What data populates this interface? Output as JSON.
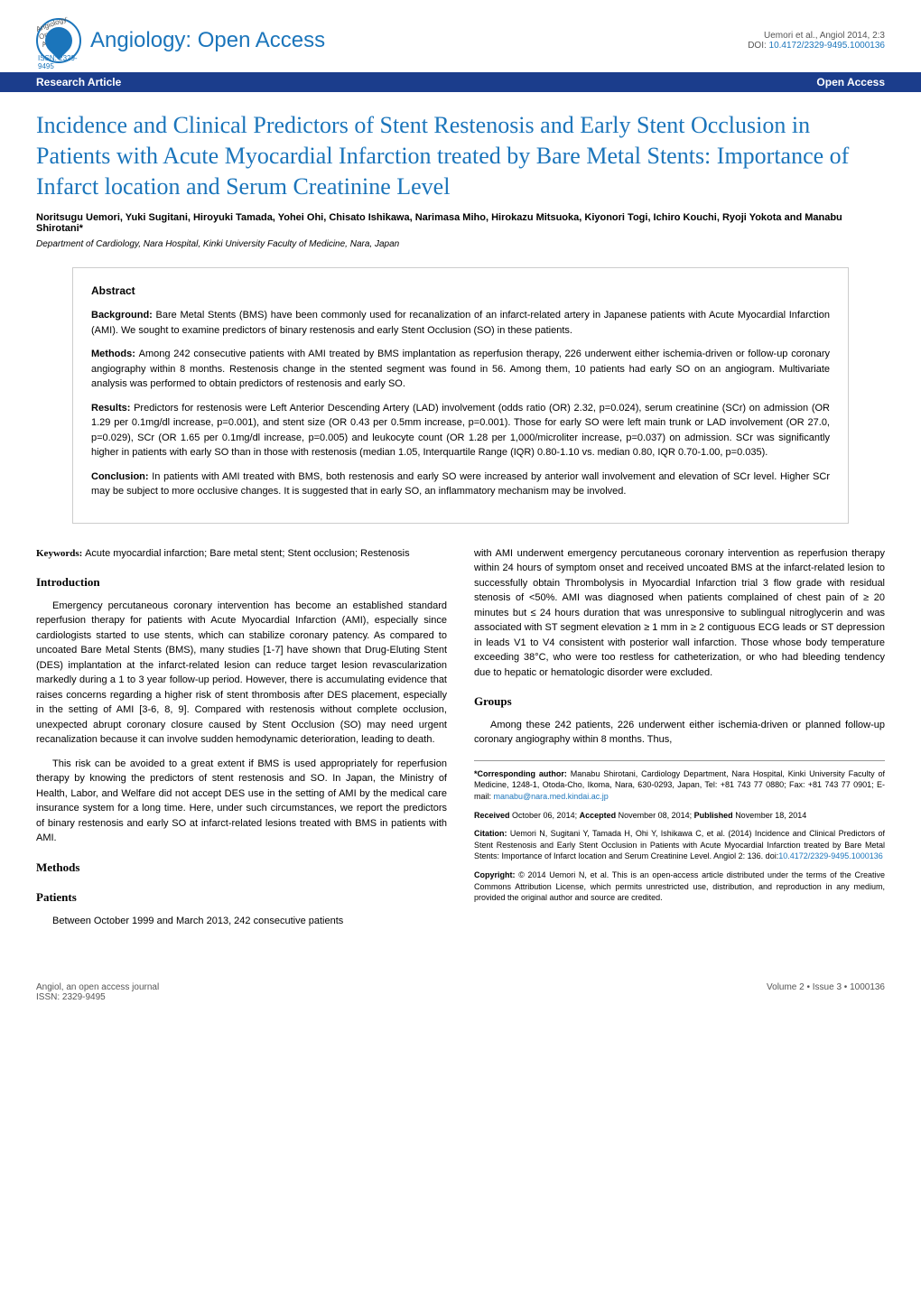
{
  "header": {
    "logo_top_text": "Angiology: Open Access",
    "issn": "ISSN: 2329-9495",
    "journal_title": "Angiology: Open Access",
    "citation": "Uemori et al., Angiol 2014, 2:3",
    "doi_label": "DOI: ",
    "doi": "10.4172/2329-9495.1000136"
  },
  "type_bar": {
    "left": "Research Article",
    "right": "Open Access"
  },
  "article": {
    "title": "Incidence and Clinical Predictors of Stent Restenosis and Early Stent Occlusion in Patients with Acute Myocardial Infarction treated by Bare Metal Stents: Importance of Infarct location and Serum Creatinine Level",
    "authors": "Noritsugu Uemori, Yuki Sugitani, Hiroyuki Tamada, Yohei Ohi, Chisato Ishikawa, Narimasa Miho, Hirokazu Mitsuoka, Kiyonori Togi, Ichiro Kouchi, Ryoji Yokota and Manabu Shirotani*",
    "affiliation": "Department of Cardiology, Nara Hospital, Kinki University Faculty of Medicine, Nara, Japan"
  },
  "abstract": {
    "heading": "Abstract",
    "background_label": "Background: ",
    "background": "Bare Metal Stents (BMS) have been commonly used for recanalization of an infarct-related artery in Japanese patients with Acute Myocardial Infarction (AMI). We sought to examine predictors of binary restenosis and early Stent Occlusion (SO) in these patients.",
    "methods_label": "Methods: ",
    "methods": "Among 242 consecutive patients with AMI treated by BMS implantation as reperfusion therapy, 226 underwent either ischemia-driven or follow-up coronary angiography within 8 months. Restenosis change in the stented segment was found in 56. Among them, 10 patients had early SO on an angiogram. Multivariate analysis was performed to obtain predictors of restenosis and early SO.",
    "results_label": "Results: ",
    "results": "Predictors for restenosis were Left Anterior Descending Artery (LAD) involvement (odds ratio (OR) 2.32, p=0.024), serum creatinine (SCr) on admission (OR 1.29 per 0.1mg/dl increase, p=0.001), and stent size (OR 0.43 per 0.5mm increase, p=0.001). Those for early SO were left main trunk or LAD involvement (OR 27.0, p=0.029), SCr (OR 1.65 per 0.1mg/dl increase, p=0.005) and leukocyte count (OR 1.28 per 1,000/microliter increase, p=0.037) on admission. SCr was significantly higher in patients with early SO than in those with restenosis (median 1.05, Interquartile Range (IQR) 0.80-1.10 vs. median 0.80, IQR 0.70-1.00, p=0.035).",
    "conclusion_label": "Conclusion: ",
    "conclusion": "In patients with AMI treated with BMS, both restenosis and early SO were increased by anterior wall involvement and elevation of SCr level. Higher SCr may be subject to more occlusive changes. It is suggested that in early SO, an inflammatory mechanism may be involved."
  },
  "body": {
    "keywords_label": "Keywords: ",
    "keywords": "Acute myocardial infarction; Bare metal stent; Stent occlusion; Restenosis",
    "intro_heading": "Introduction",
    "intro_p1": "Emergency percutaneous coronary intervention has become an established standard reperfusion therapy for patients with Acute Myocardial Infarction (AMI), especially since cardiologists started to use stents, which can stabilize coronary patency. As compared to uncoated Bare Metal Stents (BMS), many studies [1-7] have shown that Drug-Eluting Stent (DES) implantation at the infarct-related lesion can reduce target lesion revascularization markedly during a 1 to 3 year follow-up period. However, there is accumulating evidence that raises concerns regarding a higher risk of stent thrombosis after DES placement, especially in the setting of AMI [3-6, 8, 9]. Compared with restenosis without complete occlusion, unexpected abrupt coronary closure caused by Stent Occlusion (SO) may need urgent recanalization because it can involve sudden hemodynamic deterioration, leading to death.",
    "intro_p2": "This risk can be avoided to a great extent if BMS is used appropriately for reperfusion therapy by knowing the predictors of stent restenosis and SO. In Japan, the Ministry of Health, Labor, and Welfare did not accept DES use in the setting of AMI by the medical care insurance system for a long time. Here, under such circumstances, we report the predictors of binary restenosis and early SO at infarct-related lesions treated with BMS in patients with AMI.",
    "methods_heading": "Methods",
    "patients_heading": "Patients",
    "patients_p1": "Between October 1999 and March 2013, 242 consecutive patients",
    "col2_p1": "with AMI underwent emergency percutaneous coronary intervention as reperfusion therapy within 24 hours of symptom onset and received uncoated BMS at the infarct-related lesion to successfully obtain Thrombolysis in Myocardial Infarction trial 3 flow grade with residual stenosis of <50%. AMI was diagnosed when patients complained of chest pain of ≥ 20 minutes but ≤ 24 hours duration that was unresponsive to sublingual nitroglycerin and was associated with ST segment elevation ≥ 1 mm in ≥ 2 contiguous ECG leads or ST depression in leads V1 to V4 consistent with posterior wall infarction. Those whose body temperature exceeding 38°C, who were too restless for catheterization, or who had bleeding tendency due to hepatic or hematologic disorder were excluded.",
    "groups_heading": "Groups",
    "groups_p1": "Among these 242 patients, 226 underwent either ischemia-driven or planned follow-up coronary angiography within 8 months. Thus,"
  },
  "footer_box": {
    "corresponding_label": "*Corresponding author: ",
    "corresponding": "Manabu Shirotani, Cardiology Department, Nara Hospital, Kinki University Faculty of Medicine, 1248-1, Otoda-Cho, Ikoma, Nara, 630-0293, Japan, Tel: +81 743 77 0880; Fax: +81 743 77 0901; E-mail: ",
    "email": "manabu@nara.med.kindai.ac.jp",
    "received_label": "Received ",
    "received": "October 06, 2014; ",
    "accepted_label": "Accepted ",
    "accepted": "November 08, 2014; ",
    "published_label": "Published ",
    "published": "November 18, 2014",
    "citation_label": "Citation: ",
    "citation": "Uemori N, Sugitani Y, Tamada H, Ohi Y, Ishikawa C, et al. (2014) Incidence and Clinical Predictors of Stent Restenosis and Early Stent Occlusion in Patients with Acute Myocardial Infarction treated by Bare Metal Stents: Importance of Infarct location and Serum Creatinine Level. Angiol 2: 136. doi:",
    "citation_doi": "10.4172/2329-9495.1000136",
    "copyright_label": "Copyright: ",
    "copyright": "© 2014 Uemori N, et al. This is an open-access article distributed under the terms of the Creative Commons Attribution License, which permits unrestricted use, distribution, and reproduction in any medium, provided the original author and source are credited."
  },
  "page_footer": {
    "left_line1": "Angiol, an open access journal",
    "left_line2": "ISSN: 2329-9495",
    "right": "Volume 2 • Issue 3 • 1000136"
  },
  "colors": {
    "primary_blue": "#1b75bb",
    "dark_blue": "#1b3d8c",
    "text": "#000000",
    "gray_text": "#555555",
    "border_gray": "#cccccc"
  }
}
